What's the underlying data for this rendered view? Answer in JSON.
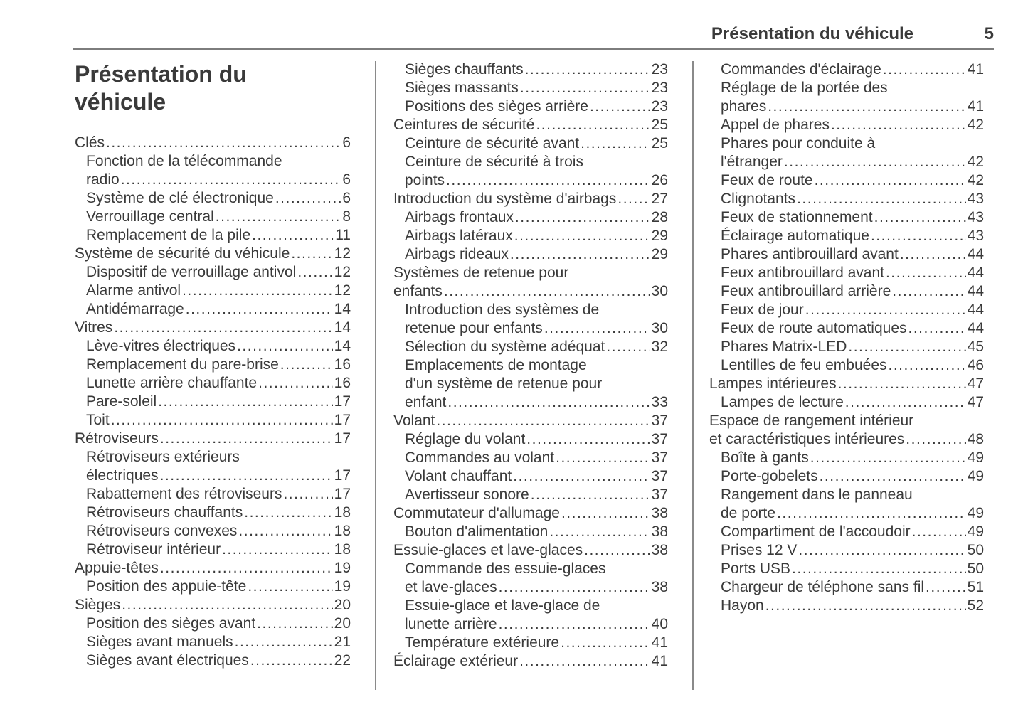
{
  "header": {
    "section_title": "Présentation du véhicule",
    "page_number": "5"
  },
  "page_title": "Présentation du véhicule",
  "toc_columns": [
    [
      {
        "lines": [
          "Clés"
        ],
        "page": "6",
        "level": 1
      },
      {
        "lines": [
          "Fonction de la télécommande",
          "radio"
        ],
        "page": "6",
        "level": 2
      },
      {
        "lines": [
          "Système de clé électronique"
        ],
        "page": "6",
        "level": 2
      },
      {
        "lines": [
          "Verrouillage central"
        ],
        "page": "8",
        "level": 2
      },
      {
        "lines": [
          "Remplacement de la pile"
        ],
        "page": "11",
        "level": 2
      },
      {
        "lines": [
          "Système de sécurité du véhicule"
        ],
        "page": "12",
        "level": 1
      },
      {
        "lines": [
          "Dispositif de verrouillage antivol"
        ],
        "page": "12",
        "level": 2
      },
      {
        "lines": [
          "Alarme antivol"
        ],
        "page": "12",
        "level": 2
      },
      {
        "lines": [
          "Antidémarrage"
        ],
        "page": "14",
        "level": 2
      },
      {
        "lines": [
          "Vitres"
        ],
        "page": "14",
        "level": 1
      },
      {
        "lines": [
          "Lève-vitres électriques"
        ],
        "page": "14",
        "level": 2
      },
      {
        "lines": [
          "Remplacement du pare-brise"
        ],
        "page": "16",
        "level": 2
      },
      {
        "lines": [
          "Lunette arrière chauffante"
        ],
        "page": "16",
        "level": 2
      },
      {
        "lines": [
          "Pare-soleil"
        ],
        "page": "17",
        "level": 2
      },
      {
        "lines": [
          "Toit"
        ],
        "page": "17",
        "level": 2
      },
      {
        "lines": [
          "Rétroviseurs"
        ],
        "page": "17",
        "level": 1
      },
      {
        "lines": [
          "Rétroviseurs extérieurs",
          "électriques"
        ],
        "page": "17",
        "level": 2
      },
      {
        "lines": [
          "Rabattement des rétroviseurs"
        ],
        "page": "17",
        "level": 2
      },
      {
        "lines": [
          "Rétroviseurs chauffants"
        ],
        "page": "18",
        "level": 2
      },
      {
        "lines": [
          "Rétroviseurs convexes"
        ],
        "page": "18",
        "level": 2
      },
      {
        "lines": [
          "Rétroviseur intérieur"
        ],
        "page": "18",
        "level": 2
      },
      {
        "lines": [
          "Appuie-têtes"
        ],
        "page": "19",
        "level": 1
      },
      {
        "lines": [
          "Position des appuie-tête"
        ],
        "page": "19",
        "level": 2
      },
      {
        "lines": [
          "Sièges"
        ],
        "page": "20",
        "level": 1
      },
      {
        "lines": [
          "Position des sièges avant"
        ],
        "page": "20",
        "level": 2
      },
      {
        "lines": [
          "Sièges avant manuels"
        ],
        "page": "21",
        "level": 2
      },
      {
        "lines": [
          "Sièges avant électriques"
        ],
        "page": "22",
        "level": 2
      }
    ],
    [
      {
        "lines": [
          "Sièges chauffants"
        ],
        "page": "23",
        "level": 2
      },
      {
        "lines": [
          "Sièges massants"
        ],
        "page": "23",
        "level": 2
      },
      {
        "lines": [
          "Positions des sièges arrière"
        ],
        "page": "23",
        "level": 2
      },
      {
        "lines": [
          "Ceintures de sécurité"
        ],
        "page": "25",
        "level": 1
      },
      {
        "lines": [
          "Ceinture de sécurité avant"
        ],
        "page": "25",
        "level": 2
      },
      {
        "lines": [
          "Ceinture de sécurité à trois",
          "points"
        ],
        "page": "26",
        "level": 2
      },
      {
        "lines": [
          "Introduction du système d'airbags"
        ],
        "page": "27",
        "level": 1
      },
      {
        "lines": [
          "Airbags frontaux"
        ],
        "page": "28",
        "level": 2
      },
      {
        "lines": [
          "Airbags latéraux"
        ],
        "page": "29",
        "level": 2
      },
      {
        "lines": [
          "Airbags rideaux"
        ],
        "page": "29",
        "level": 2
      },
      {
        "lines": [
          "Systèmes de retenue pour",
          "enfants"
        ],
        "page": "30",
        "level": 1
      },
      {
        "lines": [
          "Introduction des systèmes de",
          "retenue pour enfants"
        ],
        "page": "30",
        "level": 2
      },
      {
        "lines": [
          "Sélection du système adéquat"
        ],
        "page": "32",
        "level": 2
      },
      {
        "lines": [
          "Emplacements de montage",
          "d'un système de retenue pour",
          "enfant"
        ],
        "page": "33",
        "level": 2
      },
      {
        "lines": [
          "Volant"
        ],
        "page": "37",
        "level": 1
      },
      {
        "lines": [
          "Réglage du volant"
        ],
        "page": "37",
        "level": 2
      },
      {
        "lines": [
          "Commandes au volant"
        ],
        "page": "37",
        "level": 2
      },
      {
        "lines": [
          "Volant chauffant"
        ],
        "page": "37",
        "level": 2
      },
      {
        "lines": [
          "Avertisseur sonore"
        ],
        "page": "37",
        "level": 2
      },
      {
        "lines": [
          "Commutateur d'allumage"
        ],
        "page": "38",
        "level": 1
      },
      {
        "lines": [
          "Bouton d'alimentation"
        ],
        "page": "38",
        "level": 2
      },
      {
        "lines": [
          "Essuie-glaces et lave-glaces"
        ],
        "page": "38",
        "level": 1
      },
      {
        "lines": [
          "Commande des essuie-glaces",
          "et lave-glaces"
        ],
        "page": "38",
        "level": 2
      },
      {
        "lines": [
          "Essuie-glace et lave-glace de",
          "lunette arrière"
        ],
        "page": "40",
        "level": 2
      },
      {
        "lines": [
          "Température extérieure"
        ],
        "page": "41",
        "level": 2
      },
      {
        "lines": [
          "Éclairage extérieur"
        ],
        "page": "41",
        "level": 1
      }
    ],
    [
      {
        "lines": [
          "Commandes d'éclairage"
        ],
        "page": "41",
        "level": 2
      },
      {
        "lines": [
          "Réglage de la portée des",
          "phares"
        ],
        "page": "41",
        "level": 2
      },
      {
        "lines": [
          "Appel de phares"
        ],
        "page": "42",
        "level": 2
      },
      {
        "lines": [
          "Phares pour conduite à",
          "l'étranger"
        ],
        "page": "42",
        "level": 2
      },
      {
        "lines": [
          "Feux de route"
        ],
        "page": "42",
        "level": 2
      },
      {
        "lines": [
          "Clignotants"
        ],
        "page": "43",
        "level": 2
      },
      {
        "lines": [
          "Feux de stationnement"
        ],
        "page": "43",
        "level": 2
      },
      {
        "lines": [
          "Éclairage automatique"
        ],
        "page": "43",
        "level": 2
      },
      {
        "lines": [
          "Phares antibrouillard avant"
        ],
        "page": "44",
        "level": 2
      },
      {
        "lines": [
          "Feux antibrouillard avant"
        ],
        "page": "44",
        "level": 2
      },
      {
        "lines": [
          "Feux antibrouillard arrière"
        ],
        "page": "44",
        "level": 2
      },
      {
        "lines": [
          "Feux de jour"
        ],
        "page": "44",
        "level": 2
      },
      {
        "lines": [
          "Feux de route automatiques"
        ],
        "page": "44",
        "level": 2
      },
      {
        "lines": [
          "Phares Matrix-LED"
        ],
        "page": "45",
        "level": 2
      },
      {
        "lines": [
          "Lentilles de feu embuées"
        ],
        "page": "46",
        "level": 2
      },
      {
        "lines": [
          "Lampes intérieures"
        ],
        "page": "47",
        "level": 1
      },
      {
        "lines": [
          "Lampes de lecture"
        ],
        "page": "47",
        "level": 2
      },
      {
        "lines": [
          "Espace de rangement intérieur",
          "et caractéristiques intérieures"
        ],
        "page": "48",
        "level": 1
      },
      {
        "lines": [
          "Boîte à gants"
        ],
        "page": "49",
        "level": 2
      },
      {
        "lines": [
          "Porte-gobelets"
        ],
        "page": "49",
        "level": 2
      },
      {
        "lines": [
          "Rangement dans le panneau",
          "de porte"
        ],
        "page": "49",
        "level": 2
      },
      {
        "lines": [
          "Compartiment de l'accoudoir"
        ],
        "page": "49",
        "level": 2
      },
      {
        "lines": [
          "Prises 12 V"
        ],
        "page": "50",
        "level": 2
      },
      {
        "lines": [
          "Ports USB"
        ],
        "page": "50",
        "level": 2
      },
      {
        "lines": [
          "Chargeur de téléphone sans fil"
        ],
        "page": "51",
        "level": 2
      },
      {
        "lines": [
          "Hayon"
        ],
        "page": "52",
        "level": 2
      }
    ]
  ]
}
